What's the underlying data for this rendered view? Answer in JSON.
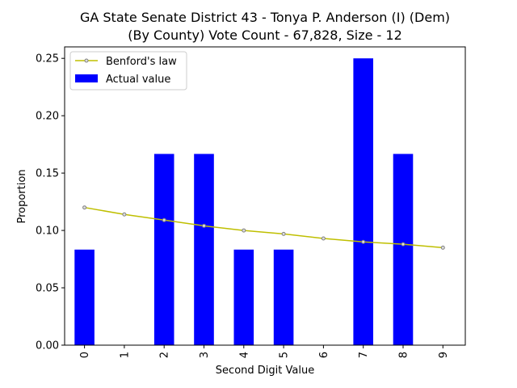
{
  "chart_data": {
    "type": "bar",
    "title_line1": "GA State Senate District 43 - Tonya P. Anderson (I) (Dem)",
    "title_line2": "(By County) Vote Count - 67,828, Size - 12",
    "xlabel": "Second Digit Value",
    "ylabel": "Proportion",
    "categories": [
      "0",
      "1",
      "2",
      "3",
      "4",
      "5",
      "6",
      "7",
      "8",
      "9"
    ],
    "ylim": [
      0,
      0.26
    ],
    "yticks": [
      "0.00",
      "0.05",
      "0.10",
      "0.15",
      "0.20",
      "0.25"
    ],
    "ytick_values": [
      0,
      0.05,
      0.1,
      0.15,
      0.2,
      0.25
    ],
    "series": [
      {
        "name": "Actual value",
        "kind": "bar",
        "color": "#0000ff",
        "values": [
          0.0833,
          0,
          0.1667,
          0.1667,
          0.0833,
          0.0833,
          0,
          0.25,
          0.1667,
          0
        ]
      },
      {
        "name": "Benford's law",
        "kind": "line",
        "color": "#bfbf00",
        "marker_color": "#808080",
        "values": [
          0.12,
          0.114,
          0.109,
          0.104,
          0.1,
          0.097,
          0.093,
          0.09,
          0.088,
          0.085
        ]
      }
    ],
    "legend": {
      "position": "top-left",
      "line_label": "Benford's law",
      "bar_label": "Actual value"
    },
    "grid": false
  }
}
